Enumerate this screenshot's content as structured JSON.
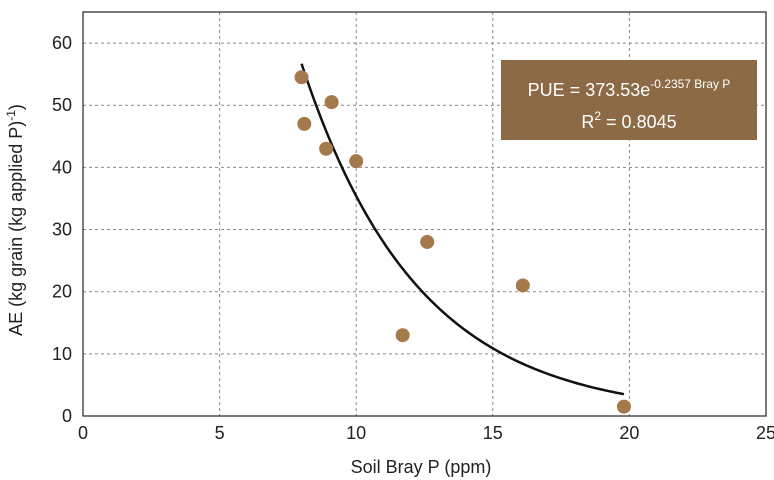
{
  "chart_data": {
    "type": "scatter",
    "title": "",
    "xlabel": "Soil Bray P (ppm)",
    "ylabel": "AE (kg grain (kg applied P)",
    "ylabel_sup": "-1",
    "ylabel_close": ")",
    "xlim": [
      0,
      25
    ],
    "ylim": [
      0,
      65
    ],
    "xticks": [
      0,
      5,
      10,
      15,
      20,
      25
    ],
    "yticks": [
      0,
      10,
      20,
      30,
      40,
      50,
      60
    ],
    "grid": true,
    "points": [
      {
        "x": 8.0,
        "y": 54.5
      },
      {
        "x": 8.1,
        "y": 47.0
      },
      {
        "x": 9.1,
        "y": 50.5
      },
      {
        "x": 8.9,
        "y": 43.0
      },
      {
        "x": 10.0,
        "y": 41.0
      },
      {
        "x": 11.7,
        "y": 13.0
      },
      {
        "x": 12.6,
        "y": 28.0
      },
      {
        "x": 16.1,
        "y": 21.0
      },
      {
        "x": 19.8,
        "y": 1.5
      }
    ],
    "fit": {
      "type": "exponential",
      "a": 373.53,
      "b": -0.2357,
      "x_range": [
        8.0,
        19.8
      ]
    },
    "annotation": {
      "line1_main": "PUE = 373.53e",
      "line1_sup": "-0.2357 Bray P",
      "line2_main": "R",
      "line2_sup": "2",
      "line2_rest": " = 0.8045"
    },
    "colors": {
      "point": "#a4794b",
      "fit_line": "#111111",
      "annotation_bg": "#8c6a46",
      "annotation_text": "#ffffff",
      "grid": "#888888"
    }
  }
}
